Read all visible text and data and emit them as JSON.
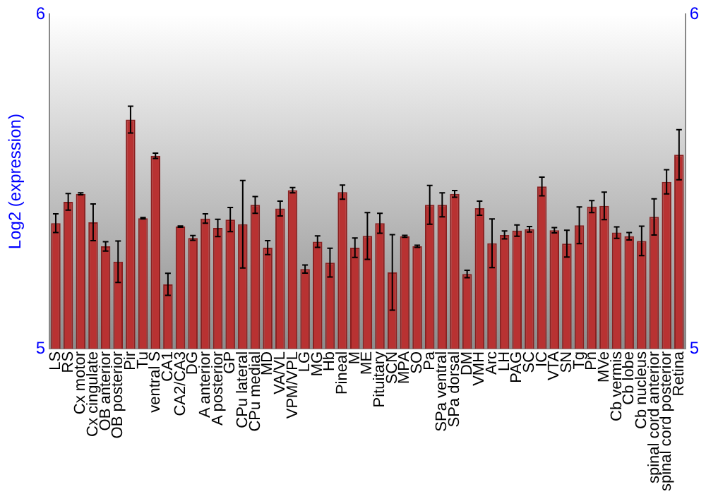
{
  "chart_data": {
    "type": "bar",
    "ylabel": "Log2 (expression)",
    "categories": [
      "LS",
      "RS",
      "Cx motor",
      "Cx cingulate",
      "OB anterior",
      "OB posterior",
      "Pir",
      "Tu",
      "ventral S",
      "CA1",
      "CA2/CA3",
      "DG",
      "A anterior",
      "A posterior",
      "GP",
      "CPu lateral",
      "CPu medial",
      "MD",
      "VA/VL",
      "VPM/VPL",
      "LG",
      "MG",
      "Hb",
      "Pineal",
      "M",
      "ME",
      "Pituitary",
      "SCN",
      "MPA",
      "SO",
      "Pa",
      "SPa ventral",
      "SPa dorsal",
      "DM",
      "VMH",
      "Arc",
      "LH",
      "PAG",
      "SC",
      "IC",
      "VTA",
      "SN",
      "Tg",
      "Pn",
      "MVe",
      "Cb vermis",
      "Cb lobe",
      "Cb nucleus",
      "spinal cord anterior",
      "spinal cord posterior",
      "Retina"
    ],
    "values": [
      5.375,
      5.439,
      5.463,
      5.378,
      5.306,
      5.26,
      5.685,
      5.39,
      5.577,
      5.192,
      5.365,
      5.331,
      5.389,
      5.361,
      5.386,
      5.372,
      5.43,
      5.302,
      5.419,
      5.474,
      5.238,
      5.32,
      5.257,
      5.468,
      5.302,
      5.337,
      5.375,
      5.228,
      5.336,
      5.306,
      5.43,
      5.43,
      5.463,
      5.223,
      5.42,
      5.315,
      5.34,
      5.353,
      5.357,
      5.485,
      5.354,
      5.314,
      5.369,
      5.425,
      5.427,
      5.347,
      5.336,
      5.322,
      5.394,
      5.499,
      5.58
    ],
    "errors": [
      0.028,
      0.025,
      0.003,
      0.055,
      0.014,
      0.062,
      0.04,
      0.002,
      0.008,
      0.033,
      0.002,
      0.007,
      0.014,
      0.026,
      0.036,
      0.131,
      0.025,
      0.021,
      0.022,
      0.008,
      0.012,
      0.017,
      0.043,
      0.021,
      0.029,
      0.07,
      0.03,
      0.113,
      0.003,
      0.003,
      0.058,
      0.036,
      0.01,
      0.011,
      0.021,
      0.073,
      0.012,
      0.017,
      0.008,
      0.028,
      0.008,
      0.04,
      0.055,
      0.018,
      0.041,
      0.017,
      0.011,
      0.044,
      0.054,
      0.036,
      0.075
    ],
    "color": "#b83232",
    "ylim": [
      5,
      6
    ],
    "yticks": [
      5,
      6
    ],
    "y2lim": [
      5,
      6
    ],
    "y2ticks": [
      5,
      6
    ],
    "grid": false,
    "legend": false
  }
}
